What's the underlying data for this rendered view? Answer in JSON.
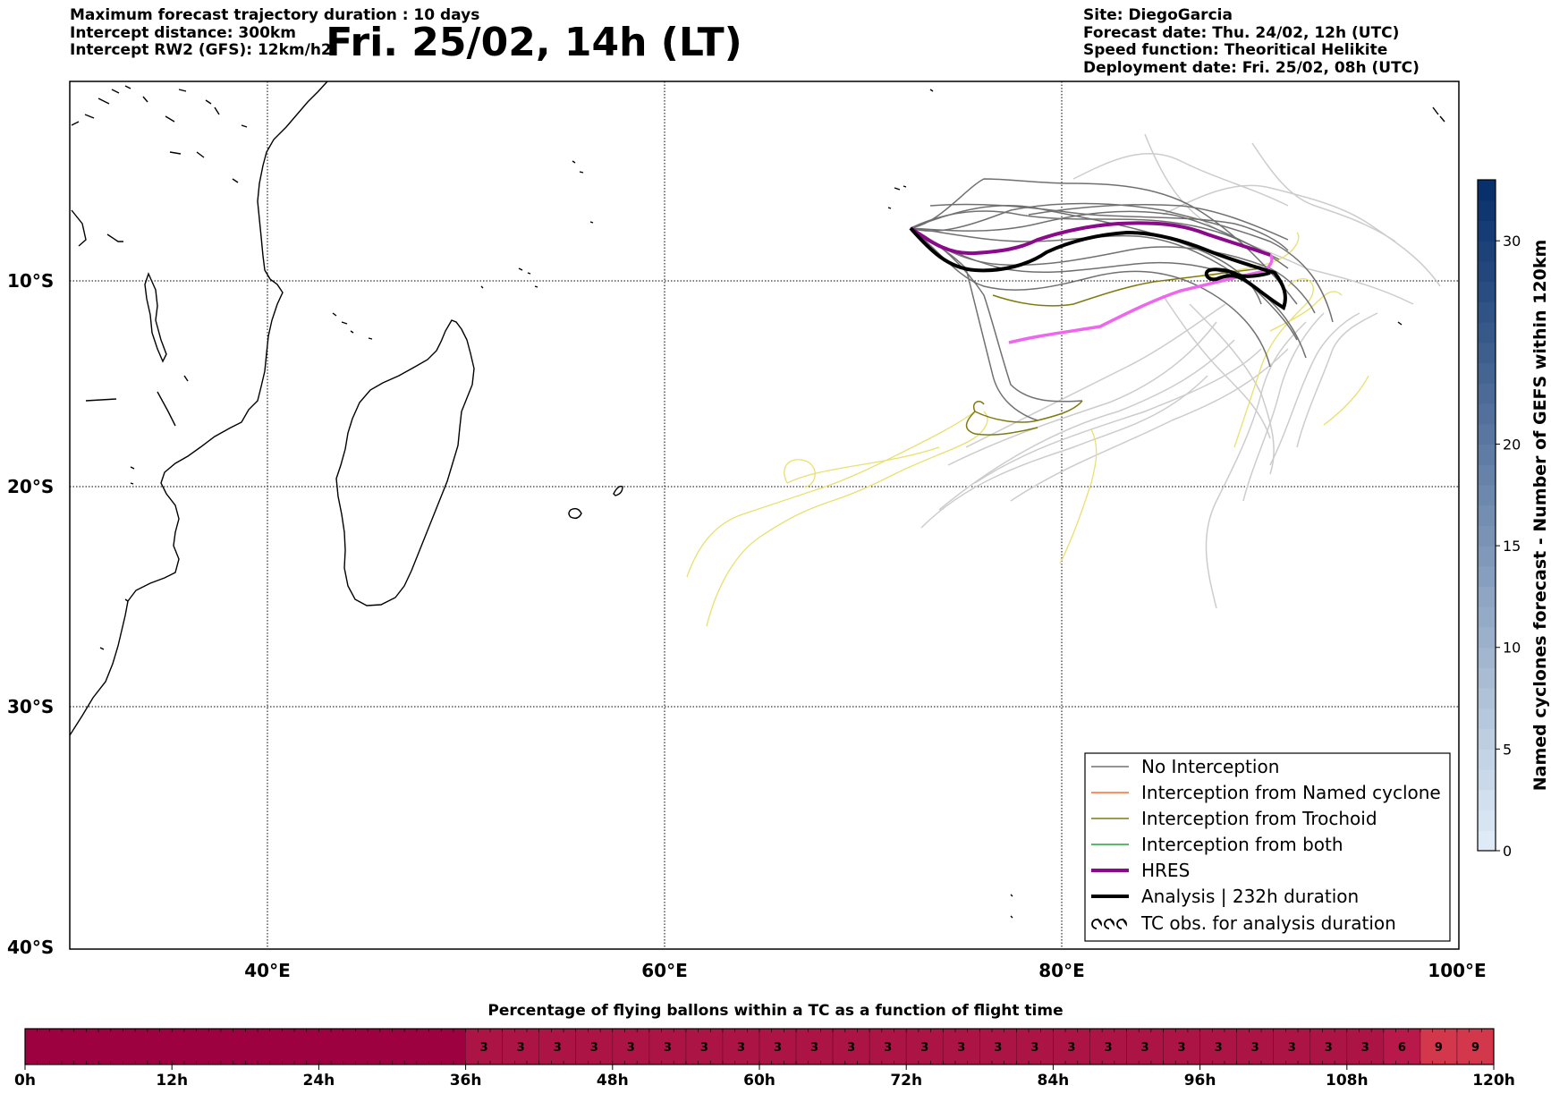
{
  "header": {
    "left": [
      "Maximum forecast trajectory duration : 10 days",
      "Intercept distance: 300km",
      "Intercept RW2 (GFS):  12km/h2"
    ],
    "title": "Fri. 25/02, 14h (LT)",
    "right": [
      "Site: DiegoGarcia",
      "Forecast date: Thu. 24/02, 12h (UTC)",
      "Speed function: Theoritical Helikite",
      "Deployment date: Fri. 25/02, 08h (UTC)"
    ]
  },
  "map": {
    "lat_labels": [
      "10°S",
      "20°S",
      "30°S",
      "40°S"
    ],
    "lon_labels": [
      "40°E",
      "60°E",
      "80°E",
      "100°E"
    ],
    "colors": {
      "no_interception": "#707070",
      "named_cyclone": "#ff6a2a",
      "trochoid": "#7f7a10",
      "both": "#22a03a",
      "hres": "#8b0a8b",
      "hres_pink": "#ee66ee",
      "analysis": "#000000",
      "light_track": "#cccccc",
      "yellow_track": "#e8e070"
    }
  },
  "legend": {
    "items": [
      {
        "label": "No Interception",
        "color": "#707070"
      },
      {
        "label": "Interception from Named cyclone",
        "color": "#ff6a2a"
      },
      {
        "label": "Interception from Trochoid",
        "color": "#7f7a10"
      },
      {
        "label": "Interception from both",
        "color": "#22a03a"
      },
      {
        "label": "HRES",
        "color": "#8b0a8b"
      },
      {
        "label": "Analysis | 232h duration",
        "color": "#000000"
      },
      {
        "label": "TC obs. for analysis duration",
        "color": "#000000"
      }
    ]
  },
  "colorbar": {
    "label": "Named cyclones forecast - Number of GEFS within 120km",
    "ticks": [
      "0",
      "5",
      "10",
      "15",
      "20",
      "30"
    ]
  },
  "time_bar": {
    "title": "Percentage of flying ballons within a TC as a function of flight time",
    "tick_labels": [
      "0h",
      "12h",
      "24h",
      "36h",
      "48h",
      "60h",
      "72h",
      "84h",
      "96h",
      "108h",
      "120h"
    ],
    "values": [
      "3",
      "3",
      "3",
      "3",
      "3",
      "3",
      "3",
      "3",
      "3",
      "3",
      "3",
      "3",
      "3",
      "3",
      "3",
      "3",
      "3",
      "3",
      "3",
      "3",
      "3",
      "3",
      "3",
      "3",
      "3",
      "6",
      "9",
      "9"
    ]
  }
}
